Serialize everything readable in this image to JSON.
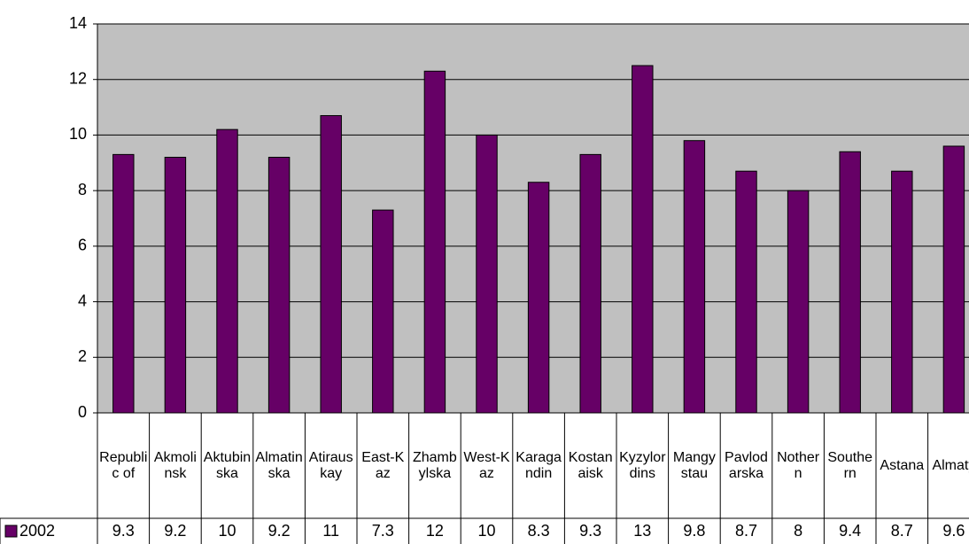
{
  "chart_data": {
    "type": "bar",
    "categories": [
      "Republic of",
      "Akmolinsk",
      "Aktubinska",
      "Almatinska",
      "Atirauskay",
      "East-Kaz",
      "Zhambylska",
      "West-Kaz",
      "Karagandin",
      "Kostanaisk",
      "Kyzylordins",
      "Mangystau",
      "Pavlodarska",
      "Nothern",
      "Southern",
      "Astana",
      "Almaty"
    ],
    "series": [
      {
        "name": "2002",
        "color": "#660066",
        "values": [
          9.3,
          9.2,
          10.2,
          9.2,
          10.7,
          7.3,
          12.3,
          10.0,
          8.3,
          9.3,
          12.5,
          9.8,
          8.7,
          8.0,
          9.4,
          8.7,
          9.6
        ],
        "value_labels": [
          "9.3",
          "9.2",
          "10",
          "9.2",
          "11",
          "7.3",
          "12",
          "10",
          "8.3",
          "9.3",
          "13",
          "9.8",
          "8.7",
          "8",
          "9.4",
          "8.7",
          "9.6"
        ]
      }
    ],
    "ylim": [
      0,
      14
    ],
    "yticks": [
      0,
      2,
      4,
      6,
      8,
      10,
      12,
      14
    ],
    "grid": true,
    "legend": "data-table"
  }
}
